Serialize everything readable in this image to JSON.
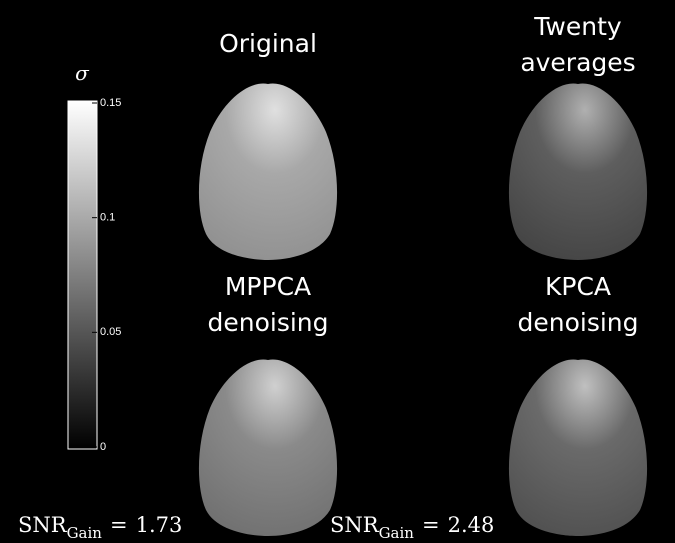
{
  "colorbar": {
    "symbol": "σ",
    "lim": [
      0,
      0.15
    ],
    "ticks": [
      0,
      0.05,
      0.1,
      0.15
    ]
  },
  "panels": [
    {
      "title": [
        "Original"
      ]
    },
    {
      "title": [
        "Twenty",
        "averages"
      ]
    },
    {
      "title": [
        "MPPCA",
        "denoising"
      ],
      "snr": {
        "base": "SNR",
        "subscript": "Gain",
        "relation": "=",
        "value": 1.73
      }
    },
    {
      "title": [
        "KPCA",
        "denoising"
      ],
      "snr": {
        "base": "SNR",
        "subscript": "Gain",
        "relation": "=",
        "value": 2.48
      }
    }
  ]
}
